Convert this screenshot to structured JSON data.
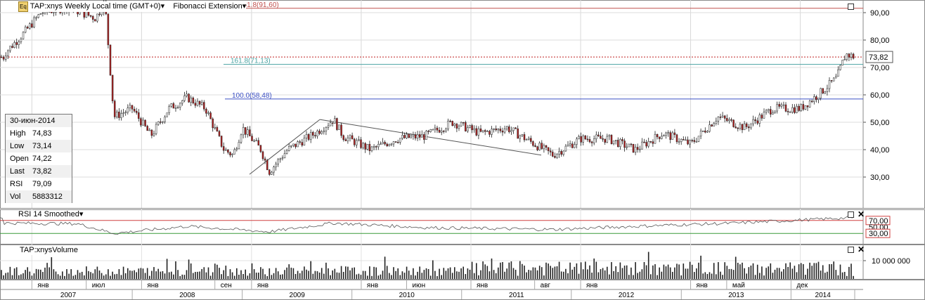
{
  "main_panel": {
    "badge": "Eq",
    "symbol": "TAP:xnys",
    "period": "Weekly",
    "timezone": "Local time (GMT+0)",
    "indicator": "Fibonacci Extension",
    "fib_levels": [
      {
        "label": "261.8(91,60)",
        "value": 91.6,
        "color": "#c0504d"
      },
      {
        "label": "161.8(71,13)",
        "value": 71.13,
        "color": "#4aa3a3"
      },
      {
        "label": "100.0(58,48)",
        "value": 58.48,
        "color": "#3b4fc4"
      }
    ],
    "last_price_label": "73,82",
    "last_price": 73.82,
    "y_ticks": [
      "90,00",
      "80,00",
      "70,00",
      "60,00",
      "50,00",
      "40,00",
      "30,00"
    ],
    "y_tick_values": [
      90,
      80,
      70,
      60,
      50,
      40,
      30
    ]
  },
  "info_box": {
    "date": "30-июн-2014",
    "rows": [
      {
        "key": "High",
        "value": "74,83"
      },
      {
        "key": "Low",
        "value": "73,14"
      },
      {
        "key": "Open",
        "value": "74,22"
      },
      {
        "key": "Last",
        "value": "73,82"
      },
      {
        "key": "RSI",
        "value": "79,09"
      },
      {
        "key": "Vol",
        "value": "5883312"
      }
    ]
  },
  "rsi_panel": {
    "title": "RSI 14 Smoothed",
    "ticks": [
      "70,00",
      "50,00",
      "30,00"
    ],
    "upper": 70,
    "lower": 30,
    "upper_color": "#d04040",
    "lower_color": "#3a9a3a"
  },
  "volume_panel": {
    "title": "TAP:xnysVolume",
    "tick": "10 000 000"
  },
  "time_axis": {
    "months": [
      "янв",
      "июл",
      "янв",
      "сен",
      "янв",
      "янв",
      "июн",
      "янв",
      "авг",
      "янв",
      "янв",
      "май",
      "дек"
    ],
    "years": [
      "2007",
      "2008",
      "2009",
      "2010",
      "2011",
      "2012",
      "2013",
      "2014"
    ]
  },
  "chart_data": {
    "type": "candlestick",
    "series": [
      {
        "name": "TAP:xnys",
        "period": "Weekly"
      }
    ],
    "x_range": [
      "2006-10",
      "2014-07"
    ],
    "ylim": [
      25,
      95
    ],
    "legend": "none",
    "grid": true,
    "close_path": [
      {
        "t": "2006-10",
        "close": 75
      },
      {
        "t": "2006-12",
        "close": 82
      },
      {
        "t": "2007-02",
        "close": 90
      },
      {
        "t": "2007-05",
        "close": 92
      },
      {
        "t": "2007-08",
        "close": 88
      },
      {
        "t": "2007-09",
        "close": 94
      },
      {
        "t": "2007-10",
        "close": 52
      },
      {
        "t": "2007-12",
        "close": 55
      },
      {
        "t": "2008-02",
        "close": 45
      },
      {
        "t": "2008-04",
        "close": 55
      },
      {
        "t": "2008-06",
        "close": 59
      },
      {
        "t": "2008-08",
        "close": 55
      },
      {
        "t": "2008-10",
        "close": 40
      },
      {
        "t": "2008-11",
        "close": 38
      },
      {
        "t": "2008-12",
        "close": 48
      },
      {
        "t": "2009-02",
        "close": 40
      },
      {
        "t": "2009-03",
        "close": 32
      },
      {
        "t": "2009-05",
        "close": 40
      },
      {
        "t": "2009-08",
        "close": 46
      },
      {
        "t": "2009-10",
        "close": 51
      },
      {
        "t": "2009-11",
        "close": 45
      },
      {
        "t": "2010-02",
        "close": 40
      },
      {
        "t": "2010-05",
        "close": 44
      },
      {
        "t": "2010-08",
        "close": 45
      },
      {
        "t": "2010-11",
        "close": 50
      },
      {
        "t": "2011-02",
        "close": 46
      },
      {
        "t": "2011-05",
        "close": 48
      },
      {
        "t": "2011-08",
        "close": 42
      },
      {
        "t": "2011-10",
        "close": 38
      },
      {
        "t": "2012-01",
        "close": 44
      },
      {
        "t": "2012-04",
        "close": 44
      },
      {
        "t": "2012-07",
        "close": 40
      },
      {
        "t": "2012-10",
        "close": 46
      },
      {
        "t": "2013-01",
        "close": 42
      },
      {
        "t": "2013-04",
        "close": 52
      },
      {
        "t": "2013-07",
        "close": 48
      },
      {
        "t": "2013-10",
        "close": 55
      },
      {
        "t": "2014-01",
        "close": 55
      },
      {
        "t": "2014-03",
        "close": 60
      },
      {
        "t": "2014-05",
        "close": 66
      },
      {
        "t": "2014-06",
        "close": 74.83
      },
      {
        "t": "2014-07",
        "close": 73.82
      }
    ],
    "rsi_path": [
      {
        "t": "2006-10",
        "rsi": 62
      },
      {
        "t": "2007-06",
        "rsi": 60
      },
      {
        "t": "2007-10",
        "rsi": 30
      },
      {
        "t": "2008-06",
        "rsi": 52
      },
      {
        "t": "2009-03",
        "rsi": 35
      },
      {
        "t": "2009-10",
        "rsi": 62
      },
      {
        "t": "2010-08",
        "rsi": 48
      },
      {
        "t": "2011-10",
        "rsi": 42
      },
      {
        "t": "2012-10",
        "rsi": 55
      },
      {
        "t": "2013-06",
        "rsi": 62
      },
      {
        "t": "2014-07",
        "rsi": 79.09
      }
    ]
  }
}
